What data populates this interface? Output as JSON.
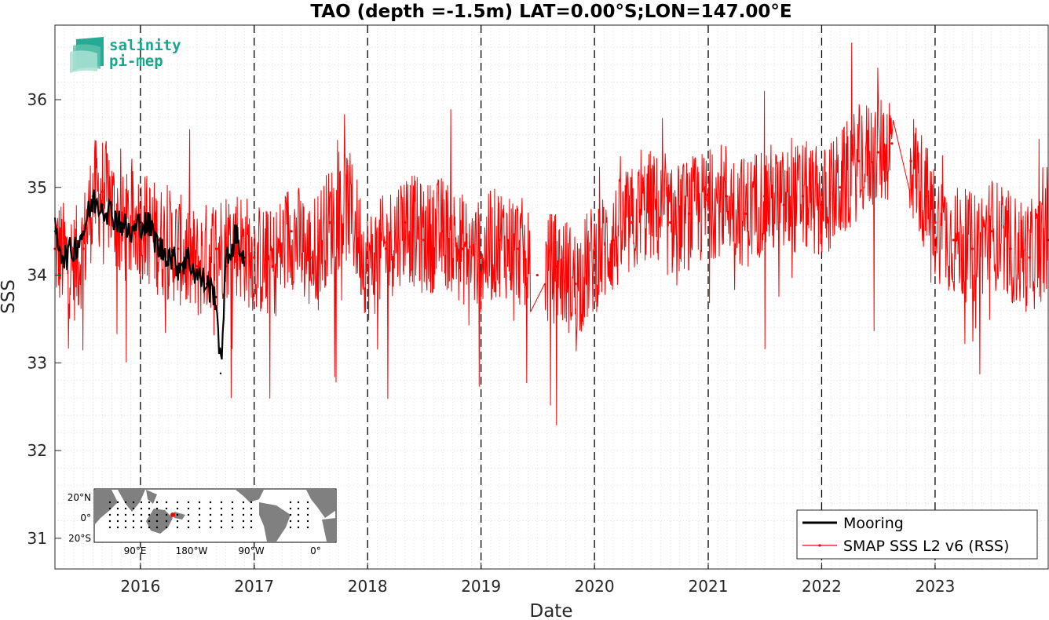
{
  "colors": {
    "mooring": "#000000",
    "smap": "#ff0000",
    "logo": "#1aa58f",
    "land": "#808080"
  },
  "logo": {
    "line1": "salinity",
    "line2": "pi-mep"
  },
  "inset_map": {
    "ytick_labels": [
      "20°N",
      "0°",
      "20°S"
    ],
    "xtick_labels": [
      "90°E",
      "180°W",
      "90°W",
      "0°"
    ],
    "marker_color": "#ff0000"
  },
  "chart_data": {
    "type": "line",
    "title": "TAO (depth =-1.5m) LAT=0.00°S;LON=147.00°E",
    "xlabel": "Date",
    "ylabel": "SSS",
    "xlim": [
      "2015-04-01",
      "2023-12-31"
    ],
    "ylim": [
      30.65,
      36.85
    ],
    "xticks": [
      {
        "date": "2016-01-01",
        "label": "2016"
      },
      {
        "date": "2017-01-01",
        "label": "2017"
      },
      {
        "date": "2018-01-01",
        "label": "2018"
      },
      {
        "date": "2019-01-01",
        "label": "2019"
      },
      {
        "date": "2020-01-01",
        "label": "2020"
      },
      {
        "date": "2021-01-01",
        "label": "2021"
      },
      {
        "date": "2022-01-01",
        "label": "2022"
      },
      {
        "date": "2023-01-01",
        "label": "2023"
      }
    ],
    "yticks": [
      31,
      32,
      33,
      34,
      35,
      36
    ],
    "grid": true,
    "legend_position": "bottom-right",
    "series": [
      {
        "name": "Mooring",
        "style": "thick black line",
        "points": [
          {
            "x": "2015-04-01",
            "y": 34.5
          },
          {
            "x": "2015-05-01",
            "y": 34.2
          },
          {
            "x": "2015-06-01",
            "y": 34.3
          },
          {
            "x": "2015-07-01",
            "y": 34.5
          },
          {
            "x": "2015-08-01",
            "y": 34.85
          },
          {
            "x": "2015-09-01",
            "y": 34.8
          },
          {
            "x": "2015-10-01",
            "y": 34.7
          },
          {
            "x": "2015-11-01",
            "y": 34.6
          },
          {
            "x": "2015-12-01",
            "y": 34.45
          },
          {
            "x": "2016-01-01",
            "y": 34.6
          },
          {
            "x": "2016-02-01",
            "y": 34.55
          },
          {
            "x": "2016-03-01",
            "y": 34.3
          },
          {
            "x": "2016-04-01",
            "y": 34.25
          },
          {
            "x": "2016-05-01",
            "y": 34.1
          },
          {
            "x": "2016-06-01",
            "y": 34.2
          },
          {
            "x": "2016-07-01",
            "y": 34.0
          },
          {
            "x": "2016-08-01",
            "y": 33.9
          },
          {
            "x": "2016-09-01",
            "y": 33.75
          },
          {
            "x": "2016-09-15",
            "y": 32.88
          },
          {
            "x": "2016-10-01",
            "y": 34.1
          },
          {
            "x": "2016-11-01",
            "y": 34.45
          },
          {
            "x": "2016-12-01",
            "y": 34.2
          }
        ]
      },
      {
        "name": "SMAP SSS L2 v6 (RSS)",
        "style": "thin red line with point markers",
        "points": [
          {
            "x": "2015-04-01",
            "y": 34.3
          },
          {
            "x": "2015-05-01",
            "y": 34.2
          },
          {
            "x": "2015-06-01",
            "y": 34.1
          },
          {
            "x": "2015-07-01",
            "y": 34.3
          },
          {
            "x": "2015-08-01",
            "y": 34.9
          },
          {
            "x": "2015-09-01",
            "y": 34.95
          },
          {
            "x": "2015-10-01",
            "y": 34.8
          },
          {
            "x": "2015-11-01",
            "y": 34.5
          },
          {
            "x": "2016-01-01",
            "y": 34.6
          },
          {
            "x": "2016-03-01",
            "y": 34.4
          },
          {
            "x": "2016-05-01",
            "y": 34.3
          },
          {
            "x": "2016-07-01",
            "y": 34.1
          },
          {
            "x": "2016-09-01",
            "y": 34.3
          },
          {
            "x": "2016-11-01",
            "y": 34.4
          },
          {
            "x": "2017-01-01",
            "y": 34.2
          },
          {
            "x": "2017-03-01",
            "y": 34.1
          },
          {
            "x": "2017-05-01",
            "y": 34.5
          },
          {
            "x": "2017-07-01",
            "y": 34.2
          },
          {
            "x": "2017-09-01",
            "y": 34.6
          },
          {
            "x": "2017-11-01",
            "y": 34.8
          },
          {
            "x": "2018-01-01",
            "y": 34.1
          },
          {
            "x": "2018-03-01",
            "y": 34.3
          },
          {
            "x": "2018-05-01",
            "y": 34.6
          },
          {
            "x": "2018-07-01",
            "y": 34.4
          },
          {
            "x": "2018-09-01",
            "y": 34.5
          },
          {
            "x": "2018-11-01",
            "y": 34.3
          },
          {
            "x": "2019-01-01",
            "y": 34.2
          },
          {
            "x": "2019-03-01",
            "y": 34.4
          },
          {
            "x": "2019-05-01",
            "y": 34.3
          },
          {
            "x": "2019-07-01",
            "y": 34.0
          },
          {
            "x": "2019-09-01",
            "y": 34.1
          },
          {
            "x": "2019-11-01",
            "y": 33.9
          },
          {
            "x": "2020-01-01",
            "y": 34.2
          },
          {
            "x": "2020-03-01",
            "y": 34.4
          },
          {
            "x": "2020-05-01",
            "y": 34.6
          },
          {
            "x": "2020-07-01",
            "y": 34.8
          },
          {
            "x": "2020-09-01",
            "y": 34.6
          },
          {
            "x": "2020-11-01",
            "y": 34.7
          },
          {
            "x": "2021-01-01",
            "y": 34.8
          },
          {
            "x": "2021-03-01",
            "y": 34.9
          },
          {
            "x": "2021-05-01",
            "y": 34.7
          },
          {
            "x": "2021-07-01",
            "y": 34.9
          },
          {
            "x": "2021-09-01",
            "y": 34.8
          },
          {
            "x": "2021-11-01",
            "y": 34.9
          },
          {
            "x": "2022-01-01",
            "y": 34.8
          },
          {
            "x": "2022-03-01",
            "y": 35.0
          },
          {
            "x": "2022-05-01",
            "y": 35.3
          },
          {
            "x": "2022-07-01",
            "y": 35.4
          },
          {
            "x": "2022-08-15",
            "y": 35.5
          },
          {
            "x": "2022-10-15",
            "y": 35.3
          },
          {
            "x": "2022-12-01",
            "y": 34.9
          },
          {
            "x": "2023-01-01",
            "y": 34.6
          },
          {
            "x": "2023-03-01",
            "y": 34.4
          },
          {
            "x": "2023-05-01",
            "y": 34.3
          },
          {
            "x": "2023-07-01",
            "y": 34.5
          },
          {
            "x": "2023-09-01",
            "y": 34.3
          },
          {
            "x": "2023-11-01",
            "y": 34.2
          },
          {
            "x": "2023-12-31",
            "y": 34.4
          }
        ]
      }
    ]
  }
}
